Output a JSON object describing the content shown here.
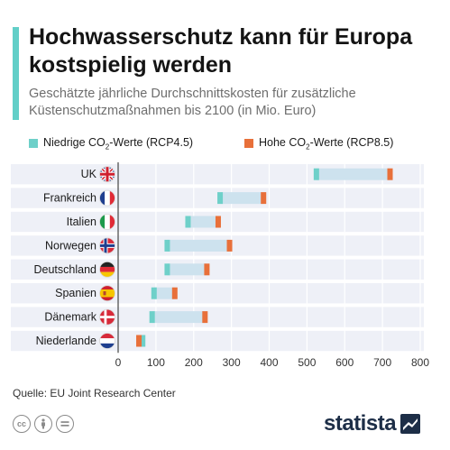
{
  "header": {
    "title": "Hochwasserschutz kann für Europa kostspielig werden",
    "subtitle": "Geschätzte jährliche Durchschnittskosten für zusätzliche Küstenschutzmaßnahmen bis 2100 (in Mio. Euro)"
  },
  "legend": {
    "low_pre": "Niedrige CO",
    "low_sub": "2",
    "low_post": "-Werte (RCP4.5)",
    "high_pre": "Hohe CO",
    "high_sub": "2",
    "high_post": "-Werte (RCP8.5)"
  },
  "colors": {
    "low": "#6ed0c9",
    "high": "#e8703a",
    "range": "#cde2ee",
    "row_bg": "#eef0f7",
    "accent": "#62cfc8"
  },
  "footer": {
    "source": "Quelle: EU Joint Research Center",
    "brand": "statista",
    "cc_icons": [
      "cc-icon",
      "attribution-icon",
      "noderivs-icon"
    ]
  },
  "chart_data": {
    "type": "bar",
    "subtype": "range-dumbbell",
    "categories": [
      "UK",
      "Frankreich",
      "Italien",
      "Norwegen",
      "Deutschland",
      "Spanien",
      "Dänemark",
      "Niederlande"
    ],
    "flags": [
      "uk-flag-icon",
      "france-flag-icon",
      "italy-flag-icon",
      "norway-flag-icon",
      "germany-flag-icon",
      "spain-flag-icon",
      "denmark-flag-icon",
      "netherlands-flag-icon"
    ],
    "series": [
      {
        "name": "Niedrige CO2-Werte (RCP4.5)",
        "values": [
          525,
          270,
          185,
          130,
          130,
          95,
          90,
          65
        ]
      },
      {
        "name": "Hohe CO2-Werte (RCP8.5)",
        "values": [
          720,
          385,
          265,
          295,
          235,
          150,
          230,
          55
        ]
      }
    ],
    "xlim": [
      0,
      800
    ],
    "xticks": [
      0,
      100,
      200,
      300,
      400,
      500,
      600,
      700,
      800
    ],
    "grid": true,
    "legend_position": "top"
  }
}
